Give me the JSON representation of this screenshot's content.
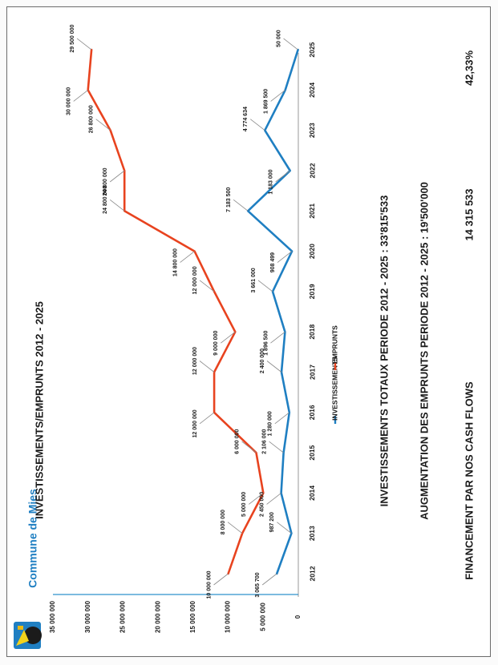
{
  "brand": {
    "name": "Commune de Mies",
    "color": "#1f7fc2"
  },
  "summary": {
    "line1": "INVESTISSEMENTS  TOTAUX PERIODE 2012 - 2025  :  33'815'533",
    "line2": "AUGMENTATION DES EMPRUNTS PERIODE 2012 - 2025 : 19'500'000",
    "line3_label": "FINANCEMENT PAR NOS CASH FLOWS",
    "line3_value": "14 315 533",
    "line3_percent": "42,33%"
  },
  "chart_data": {
    "type": "line",
    "title": "INVESTISSEMENTS/EMPRUNTS 2012 - 2025",
    "xlabel": "",
    "ylabel": "",
    "ylim": [
      0,
      35000000
    ],
    "y_ticks": [
      "0",
      "5 000 000",
      "10 000 000",
      "15 000 000",
      "20 000 000",
      "25 000 000",
      "30 000 000",
      "35 000 000"
    ],
    "y_tick_values": [
      0,
      5000000,
      10000000,
      15000000,
      20000000,
      25000000,
      30000000,
      35000000
    ],
    "categories": [
      "2012",
      "2013",
      "2014",
      "2015",
      "2016",
      "2017",
      "2018",
      "2019",
      "2020",
      "2021",
      "2022",
      "2023",
      "2024",
      "2025"
    ],
    "legend_position": "bottom",
    "series": [
      {
        "name": "INVESTISSEMENTS",
        "color": "#1f7fc2",
        "values": [
          3065700,
          987200,
          2450000,
          2106000,
          1280000,
          2400000,
          1896500,
          3661000,
          908499,
          7183500,
          1183000,
          4774634,
          1869500,
          50000
        ],
        "labels": [
          "3 065 700",
          "987 200",
          "2 450 000",
          "2 106 000",
          "1 280 000",
          "2 400 000",
          "1 896 500",
          "3 661 000",
          "908 499",
          "7 183 500",
          "1 183 000",
          "4 774 634",
          "1 869 500",
          "50 000"
        ]
      },
      {
        "name": "EMPRUNTS",
        "color": "#e8431f",
        "values": [
          10000000,
          8000000,
          5000000,
          6000000,
          12000000,
          12000000,
          9000000,
          12000000,
          14800000,
          24800000,
          24800000,
          26800000,
          30000000,
          29500000
        ],
        "labels": [
          "10 000 000",
          "8 000 000",
          "5 000 000",
          "6 000 000",
          "12 000 000",
          "12 000 000",
          "9 000 000",
          "12 000 000",
          "14 800 000",
          "24 800 000",
          "24 800 000",
          "26 800 000",
          "30 000 000",
          "29 500 000"
        ]
      }
    ]
  }
}
